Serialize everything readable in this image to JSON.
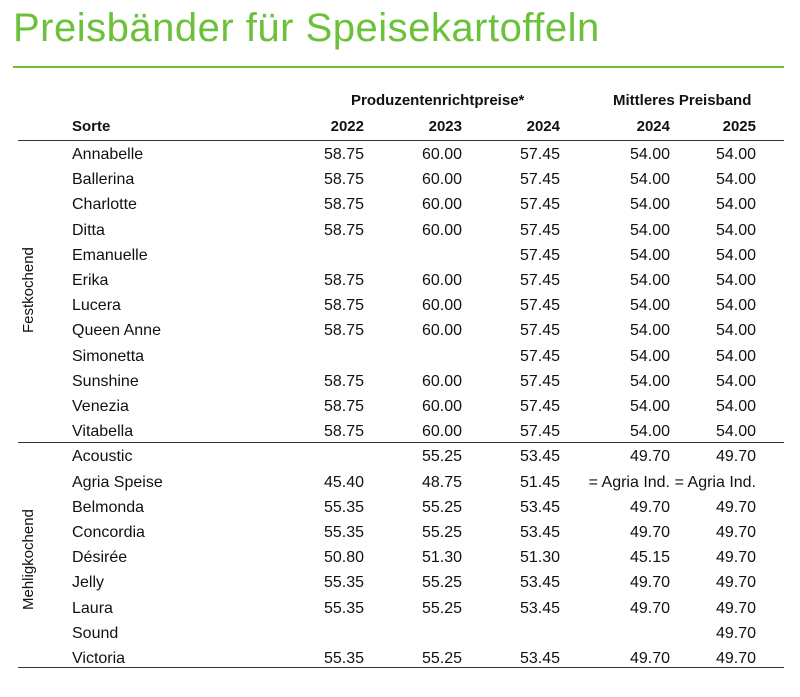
{
  "title": "Preisbänder für Speisekartoffeln",
  "header": {
    "group1": "Produzentenrichtpreise*",
    "group2": "Mittleres Preisband",
    "col_sorte": "Sorte",
    "cols": [
      "2022",
      "2023",
      "2024",
      "2024",
      "2025"
    ]
  },
  "groups": [
    {
      "label": "Festkochend",
      "rows": [
        {
          "sorte": "Annabelle",
          "v": [
            "58.75",
            "60.00",
            "57.45",
            "54.00",
            "54.00"
          ]
        },
        {
          "sorte": "Ballerina",
          "v": [
            "58.75",
            "60.00",
            "57.45",
            "54.00",
            "54.00"
          ]
        },
        {
          "sorte": "Charlotte",
          "v": [
            "58.75",
            "60.00",
            "57.45",
            "54.00",
            "54.00"
          ]
        },
        {
          "sorte": "Ditta",
          "v": [
            "58.75",
            "60.00",
            "57.45",
            "54.00",
            "54.00"
          ]
        },
        {
          "sorte": "Emanuelle",
          "v": [
            "",
            "",
            "57.45",
            "54.00",
            "54.00"
          ]
        },
        {
          "sorte": "Erika",
          "v": [
            "58.75",
            "60.00",
            "57.45",
            "54.00",
            "54.00"
          ]
        },
        {
          "sorte": "Lucera",
          "v": [
            "58.75",
            "60.00",
            "57.45",
            "54.00",
            "54.00"
          ]
        },
        {
          "sorte": "Queen Anne",
          "v": [
            "58.75",
            "60.00",
            "57.45",
            "54.00",
            "54.00"
          ]
        },
        {
          "sorte": "Simonetta",
          "v": [
            "",
            "",
            "57.45",
            "54.00",
            "54.00"
          ]
        },
        {
          "sorte": "Sunshine",
          "v": [
            "58.75",
            "60.00",
            "57.45",
            "54.00",
            "54.00"
          ]
        },
        {
          "sorte": "Venezia",
          "v": [
            "58.75",
            "60.00",
            "57.45",
            "54.00",
            "54.00"
          ]
        },
        {
          "sorte": "Vitabella",
          "v": [
            "58.75",
            "60.00",
            "57.45",
            "54.00",
            "54.00"
          ]
        }
      ]
    },
    {
      "label": "Mehligkochend",
      "rows": [
        {
          "sorte": "Acoustic",
          "v": [
            "",
            "55.25",
            "53.45",
            "49.70",
            "49.70"
          ]
        },
        {
          "sorte": "Agria Speise",
          "v": [
            "45.40",
            "48.75",
            "51.45",
            "= Agria Ind.",
            "= Agria Ind."
          ]
        },
        {
          "sorte": "Belmonda",
          "v": [
            "55.35",
            "55.25",
            "53.45",
            "49.70",
            "49.70"
          ]
        },
        {
          "sorte": "Concordia",
          "v": [
            "55.35",
            "55.25",
            "53.45",
            "49.70",
            "49.70"
          ]
        },
        {
          "sorte": "Désirée",
          "v": [
            "50.80",
            "51.30",
            "51.30",
            "45.15",
            "49.70"
          ]
        },
        {
          "sorte": "Jelly",
          "v": [
            "55.35",
            "55.25",
            "53.45",
            "49.70",
            "49.70"
          ]
        },
        {
          "sorte": "Laura",
          "v": [
            "55.35",
            "55.25",
            "53.45",
            "49.70",
            "49.70"
          ]
        },
        {
          "sorte": "Sound",
          "v": [
            "",
            "",
            "",
            "",
            "49.70"
          ]
        },
        {
          "sorte": "Victoria",
          "v": [
            "55.35",
            "55.25",
            "53.45",
            "49.70",
            "49.70"
          ]
        }
      ]
    }
  ],
  "colors": {
    "title": "#6cc13a",
    "rule": "#6cc13a"
  }
}
